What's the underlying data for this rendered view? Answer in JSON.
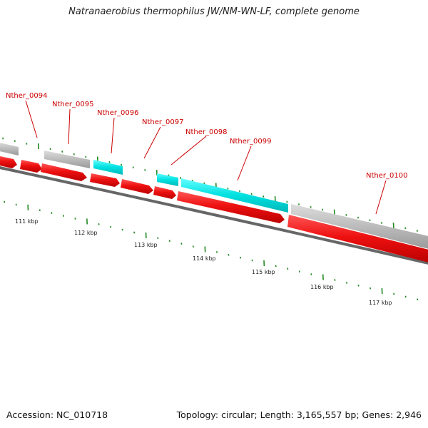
{
  "title": "Natranaerobius thermophilus JW/NM-WN-LF, complete genome",
  "footer": {
    "accession": "Accession: NC_010718",
    "summary": "Topology: circular; Length: 3,165,557 bp; Genes: 2,946"
  },
  "colors": {
    "forward_cds": "#ee1111",
    "reverse_cds": "#00dddd",
    "other_gene": "#bbbbbb",
    "backbone": "#666666",
    "ticks": "#228822",
    "labels": "#cc0000"
  },
  "gene_labels": [
    "Nther_0094",
    "Nther_0095",
    "Nther_0096",
    "Nther_0097",
    "Nther_0098",
    "Nther_0099",
    "Nther_0100"
  ],
  "scale_labels": [
    "111 kbp",
    "112 kbp",
    "113 kbp",
    "114 kbp",
    "115 kbp",
    "116 kbp",
    "117 kbp"
  ]
}
